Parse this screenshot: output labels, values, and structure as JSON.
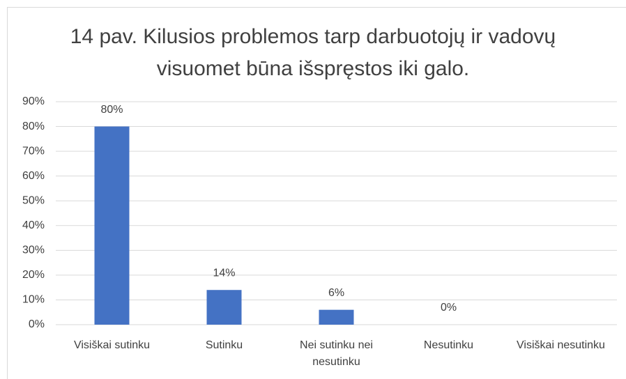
{
  "chart_data": {
    "type": "bar",
    "title": "14 pav. Kilusios problemos tarp darbuotojų ir vadovų visuomet būna išspręstos iki galo.",
    "categories": [
      "Visiškai sutinku",
      "Sutinku",
      "Nei sutinku nei nesutinku",
      "Nesutinku",
      "Visiškai nesutinku"
    ],
    "values": [
      80,
      14,
      6,
      0,
      null
    ],
    "value_labels": [
      "80%",
      "14%",
      "6%",
      "0%",
      null
    ],
    "color": "#4472c4",
    "ylim": [
      0,
      90
    ],
    "yticks": [
      {
        "value": 0,
        "label": "0%"
      },
      {
        "value": 10,
        "label": "10%"
      },
      {
        "value": 20,
        "label": "20%"
      },
      {
        "value": 30,
        "label": "30%"
      },
      {
        "value": 40,
        "label": "40%"
      },
      {
        "value": 50,
        "label": "50%"
      },
      {
        "value": 60,
        "label": "60%"
      },
      {
        "value": 70,
        "label": "70%"
      },
      {
        "value": 80,
        "label": "80%"
      },
      {
        "value": 90,
        "label": "90%"
      }
    ],
    "grid": true
  }
}
